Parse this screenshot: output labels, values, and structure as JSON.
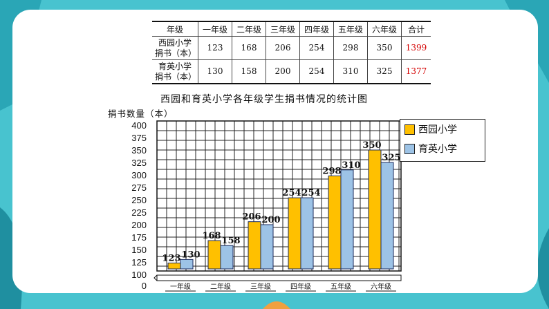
{
  "table": {
    "headers": [
      "年级",
      "一年级",
      "二年级",
      "三年级",
      "四年级",
      "五年级",
      "六年级",
      "合计"
    ],
    "rows": [
      {
        "school_line1": "西园小学",
        "school_line2": "捐书（本）",
        "values": [
          "123",
          "168",
          "206",
          "254",
          "298",
          "350"
        ],
        "total": "1399"
      },
      {
        "school_line1": "育英小学",
        "school_line2": "捐书（本）",
        "values": [
          "130",
          "158",
          "200",
          "254",
          "310",
          "325"
        ],
        "total": "1377"
      }
    ]
  },
  "chart_data": {
    "type": "bar",
    "title": "西园和育英小学各年级学生捐书情况的统计图",
    "ylabel": "捐书数量（本）",
    "xlabel": "",
    "categories": [
      "一年级",
      "二年级",
      "三年级",
      "四年级",
      "五年级",
      "六年级"
    ],
    "series": [
      {
        "name": "西园小学",
        "values": [
          123,
          168,
          206,
          254,
          298,
          350
        ],
        "color": "#ffc000"
      },
      {
        "name": "育英小学",
        "values": [
          130,
          158,
          200,
          254,
          310,
          325
        ],
        "color": "#9dc3e6"
      }
    ],
    "yticks": [
      0,
      100,
      125,
      150,
      175,
      200,
      225,
      250,
      275,
      300,
      325,
      350,
      375,
      400
    ],
    "ylim": [
      100,
      400
    ],
    "y_axis_break": true,
    "grid": true,
    "legend_position": "right"
  }
}
